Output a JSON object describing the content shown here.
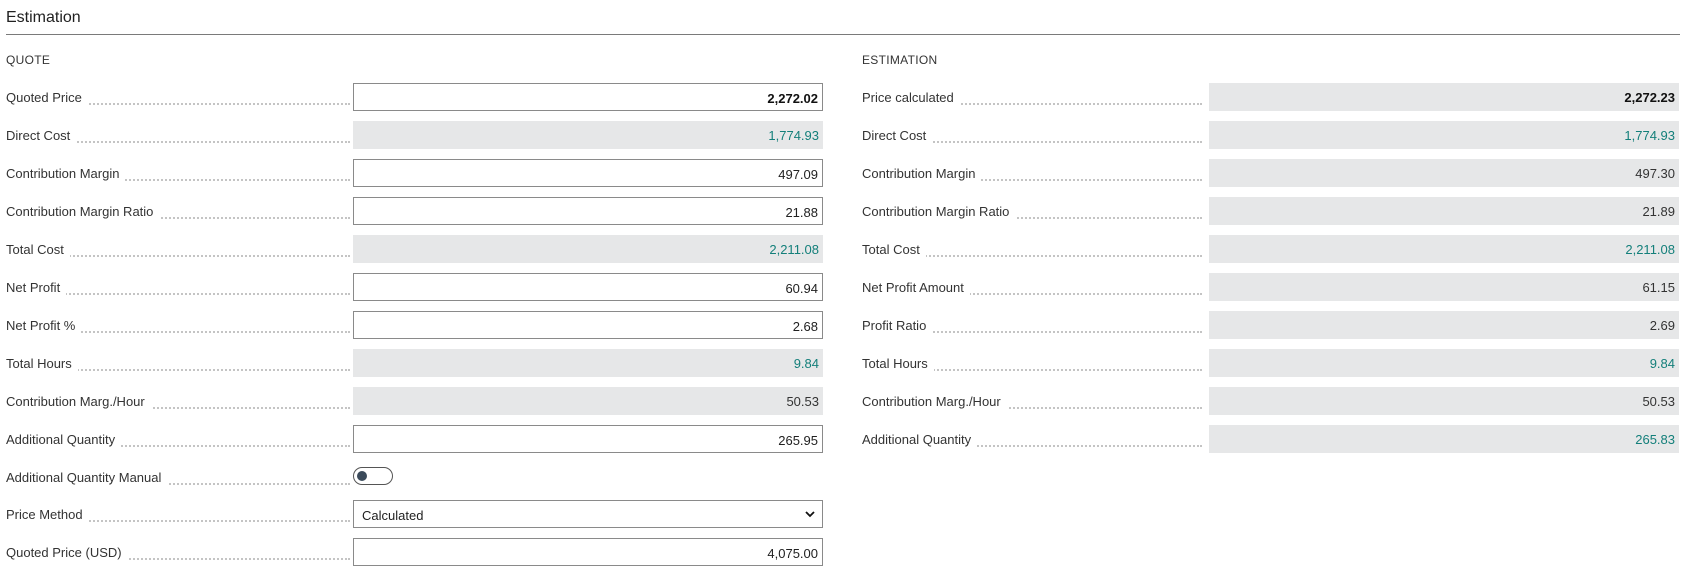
{
  "section": {
    "title": "Estimation"
  },
  "quote": {
    "title": "QUOTE",
    "fields": {
      "quoted_price": {
        "label": "Quoted Price",
        "value": "2,272.02"
      },
      "direct_cost": {
        "label": "Direct Cost",
        "value": "1,774.93"
      },
      "contribution_margin": {
        "label": "Contribution Margin",
        "value": "497.09"
      },
      "contribution_margin_ratio": {
        "label": "Contribution Margin Ratio",
        "value": "21.88"
      },
      "total_cost": {
        "label": "Total Cost",
        "value": "2,211.08"
      },
      "net_profit": {
        "label": "Net Profit",
        "value": "60.94"
      },
      "net_profit_pct": {
        "label": "Net Profit %",
        "value": "2.68"
      },
      "total_hours": {
        "label": "Total Hours",
        "value": "9.84"
      },
      "contribution_marg_hour": {
        "label": "Contribution Marg./Hour",
        "value": "50.53"
      },
      "additional_quantity": {
        "label": "Additional Quantity",
        "value": "265.95"
      },
      "additional_quantity_manual": {
        "label": "Additional Quantity Manual",
        "checked": false
      },
      "price_method": {
        "label": "Price Method",
        "value": "Calculated"
      },
      "quoted_price_usd": {
        "label": "Quoted Price (USD)",
        "value": "4,075.00"
      }
    }
  },
  "estimation": {
    "title": "ESTIMATION",
    "fields": {
      "price_calculated": {
        "label": "Price calculated",
        "value": "2,272.23"
      },
      "direct_cost": {
        "label": "Direct Cost",
        "value": "1,774.93"
      },
      "contribution_margin": {
        "label": "Contribution Margin",
        "value": "497.30"
      },
      "contribution_margin_ratio": {
        "label": "Contribution Margin Ratio",
        "value": "21.89"
      },
      "total_cost": {
        "label": "Total Cost",
        "value": "2,211.08"
      },
      "net_profit_amount": {
        "label": "Net Profit Amount",
        "value": "61.15"
      },
      "profit_ratio": {
        "label": "Profit Ratio",
        "value": "2.69"
      },
      "total_hours": {
        "label": "Total Hours",
        "value": "9.84"
      },
      "contribution_marg_hour": {
        "label": "Contribution Marg./Hour",
        "value": "50.53"
      },
      "additional_quantity": {
        "label": "Additional Quantity",
        "value": "265.83"
      }
    }
  },
  "colors": {
    "link": "#137f7a",
    "readonly_bg": "#e6e7e8",
    "border": "#8a8a8a"
  }
}
